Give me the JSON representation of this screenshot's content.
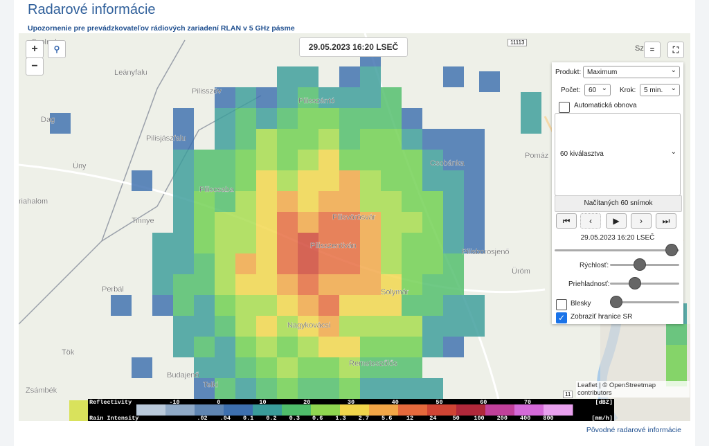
{
  "header": {
    "title": "Radarové informácie",
    "notice": "Upozornenie pre prevádzkovateľov rádiových zariadení RLAN v 5 GHz pásme"
  },
  "map": {
    "timestamp": "29.05.2023 16:20 LSEČ",
    "zoom_in": "+",
    "zoom_out": "−",
    "corner_label": "Sz",
    "road_number": "11113",
    "road_number_2": "11",
    "labels": [
      "Csolnok",
      "Leányfalu",
      "Pilisszév",
      "Pilisszántó",
      "Dag",
      "Pilisjászfalu",
      "Úny",
      "Pomáz",
      "Csobánka",
      "Piliscsaba",
      "riahalom",
      "Pilisvörösvár",
      "Tinnye",
      "Pilisszentiván",
      "Pilisborosjenő",
      "Üröm",
      "Perbál",
      "Solymár",
      "Nagykovácsi",
      "Tök",
      "Remeteszőlős",
      "Budajenő",
      "Telki",
      "Zsámbék"
    ],
    "attribution": "Leaflet | © OpenStreetmap contributors"
  },
  "panel": {
    "product_label": "Produkt:",
    "product_value": "Maximum",
    "count_label": "Počet:",
    "count_value": "60",
    "step_label": "Krok:",
    "step_value": "5 min.",
    "auto_refresh": "Automatická obnova",
    "selection": "60 kiválasztva",
    "loaded": "Načítaných 60 snímok",
    "time": "29.05.2023 16:20 LSEČ",
    "speed": "Rýchlosť:",
    "opacity": "Priehladnosť:",
    "lightning": "Blesky",
    "borders": "Zobraziť hranice SR"
  },
  "legend": {
    "reflectivity_title": "Reflectivity",
    "reflectivity_labels": [
      "-10",
      "0",
      "10",
      "20",
      "30",
      "40",
      "50",
      "60",
      "70"
    ],
    "reflectivity_unit": "[dBZ]",
    "rain_title": "Rain Intensity",
    "rain_labels": [
      ".02",
      ".04",
      "0.1",
      "0.2",
      "0.3",
      "0.6",
      "1.3",
      "2.7",
      "5.6",
      "12",
      "24",
      "50",
      "100",
      "200",
      "400",
      "800"
    ],
    "rain_unit": "[mm/h]"
  },
  "footer": {
    "link": "Pôvodné radarové informácie"
  }
}
